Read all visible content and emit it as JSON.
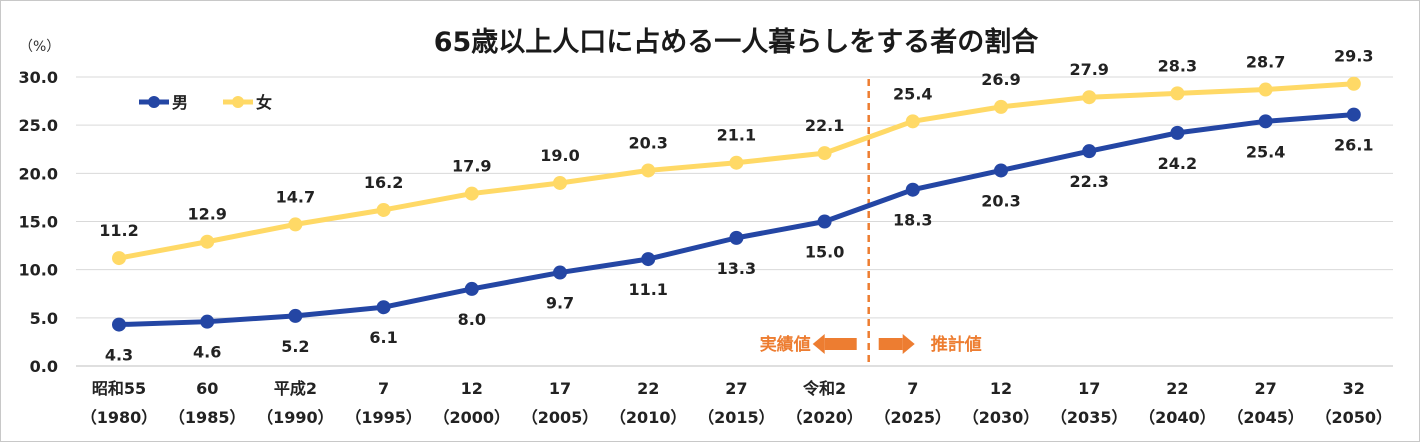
{
  "chart_data": {
    "type": "line",
    "title": "65歳以上人口に占める一人暮らしをする者の割合",
    "ylabel": "（%）",
    "ylim": [
      0,
      30
    ],
    "yticks": [
      "0.0",
      "5.0",
      "10.0",
      "15.0",
      "20.0",
      "25.0",
      "30.0"
    ],
    "categories": [
      "昭和55",
      "60",
      "平成2",
      "7",
      "12",
      "17",
      "22",
      "27",
      "令和2",
      "7",
      "12",
      "17",
      "22",
      "27",
      "32"
    ],
    "categories_year": [
      "（1980）",
      "（1985）",
      "（1990）",
      "（1995）",
      "（2000）",
      "（2005）",
      "（2010）",
      "（2015）",
      "（2020）",
      "（2025）",
      "（2030）",
      "（2035）",
      "（2040）",
      "（2045）",
      "（2050）"
    ],
    "series": [
      {
        "name": "男",
        "color": "#2446A4",
        "values": [
          4.3,
          4.6,
          5.2,
          6.1,
          8.0,
          9.7,
          11.1,
          13.3,
          15.0,
          18.3,
          20.3,
          22.3,
          24.2,
          25.4,
          26.1
        ],
        "labels": [
          "4.3",
          "4.6",
          "5.2",
          "6.1",
          "8.0",
          "9.7",
          "11.1",
          "13.3",
          "15.0",
          "18.3",
          "20.3",
          "22.3",
          "24.2",
          "25.4",
          "26.1"
        ]
      },
      {
        "name": "女",
        "color": "#FFD966",
        "values": [
          11.2,
          12.9,
          14.7,
          16.2,
          17.9,
          19.0,
          20.3,
          21.1,
          22.1,
          25.4,
          26.9,
          27.9,
          28.3,
          28.7,
          29.3
        ],
        "labels": [
          "11.2",
          "12.9",
          "14.7",
          "16.2",
          "17.9",
          "19.0",
          "20.3",
          "21.1",
          "22.1",
          "25.4",
          "26.9",
          "27.9",
          "28.3",
          "28.7",
          "29.3"
        ]
      }
    ],
    "legend_position": "top-left",
    "annotations": {
      "divider_after_category": "令和2",
      "actual_label": "実績値",
      "projected_label": "推計値",
      "color": "#ED7D31"
    }
  }
}
